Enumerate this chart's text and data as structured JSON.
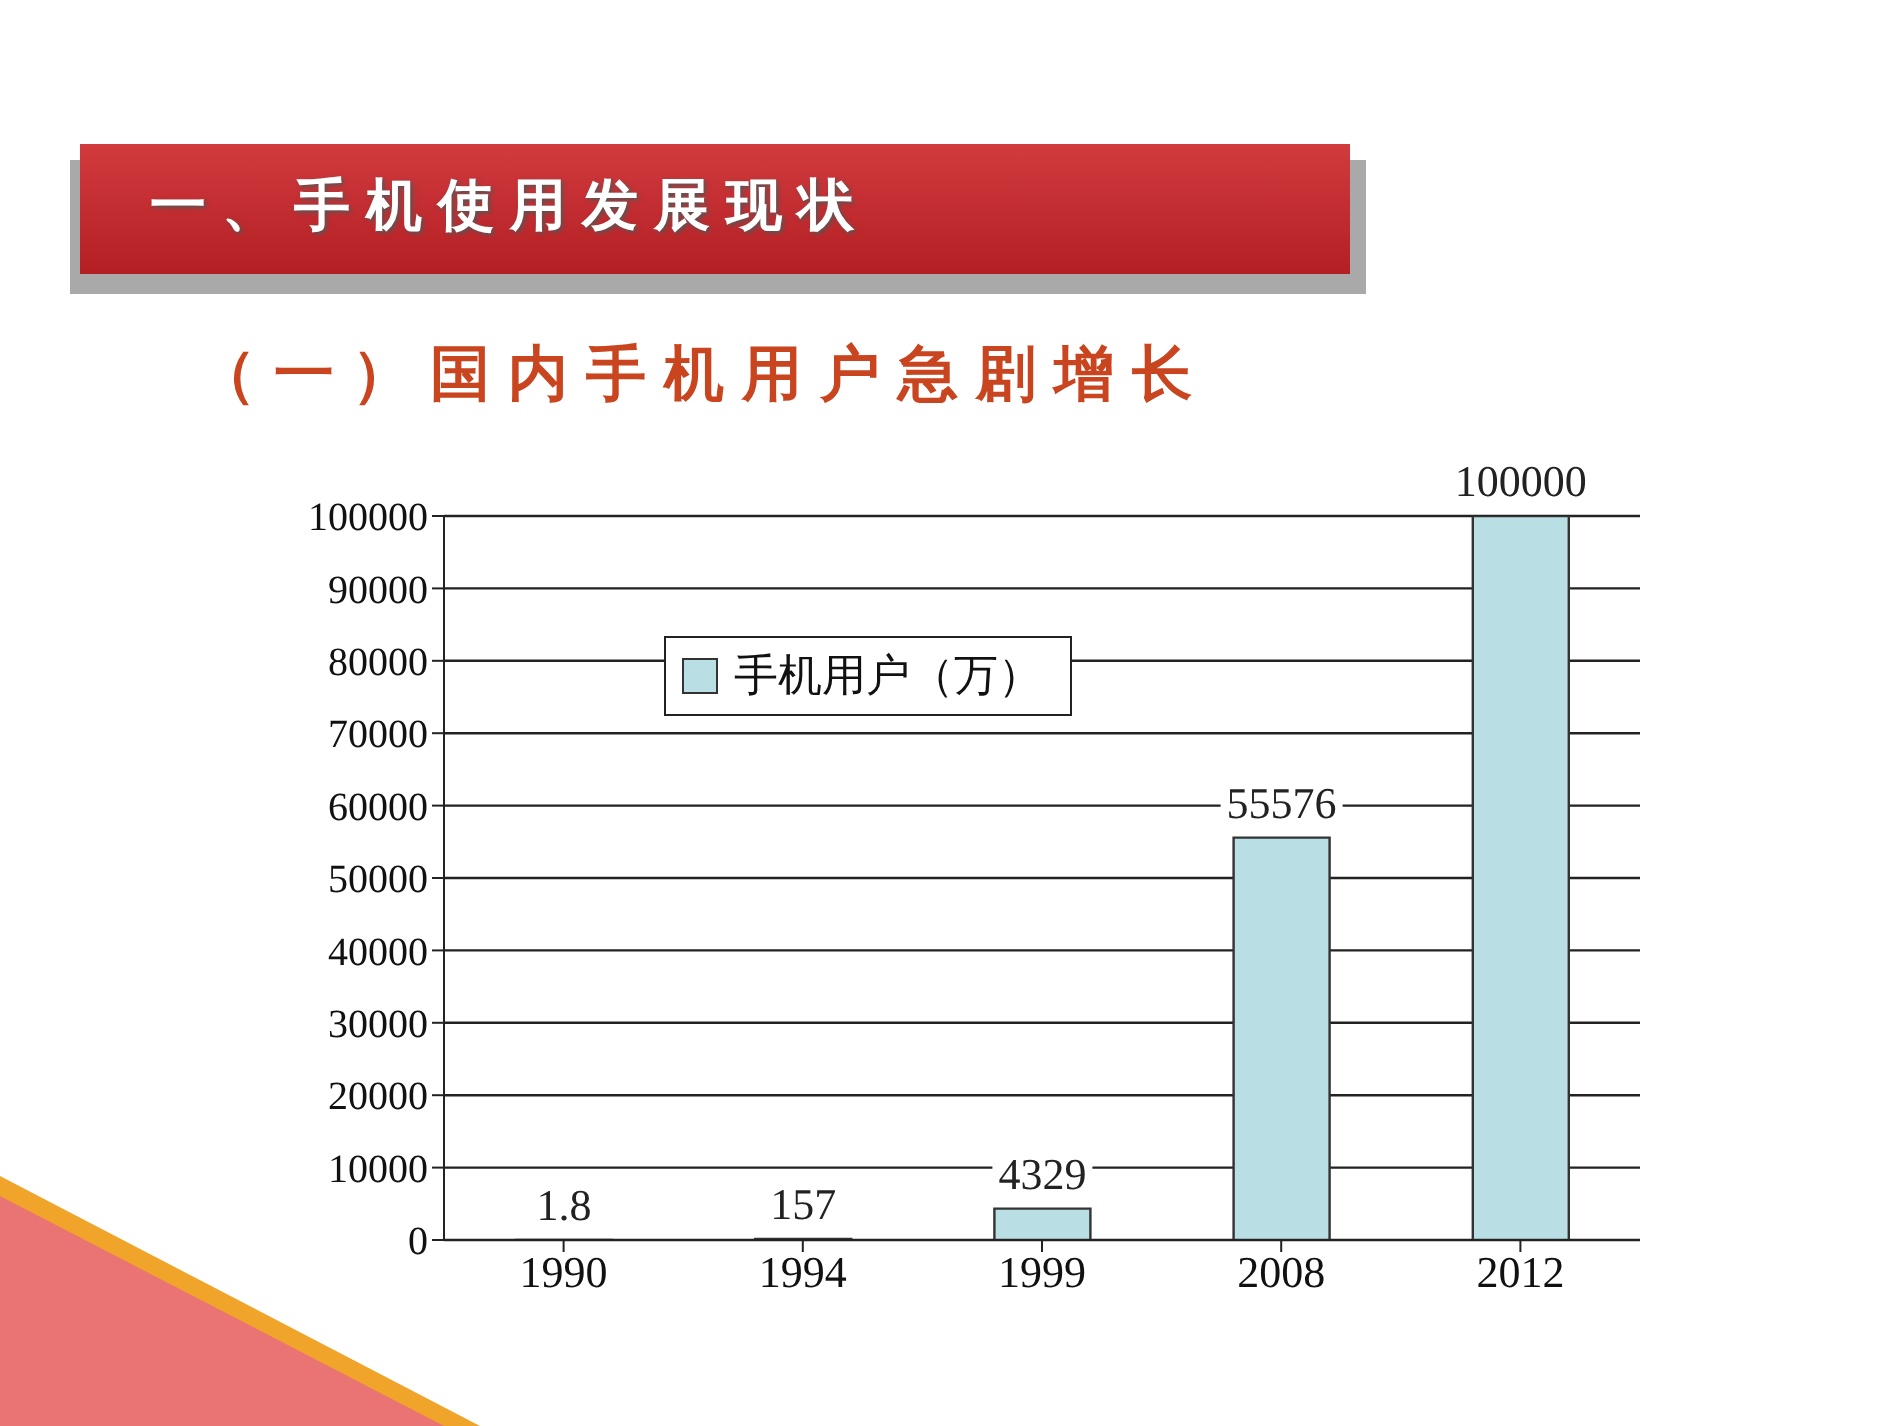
{
  "chart_data": {
    "type": "bar",
    "title": "一、手机使用发展现状",
    "subtitle": "（一）国内手机用户急剧增长",
    "categories": [
      "1990",
      "1994",
      "1999",
      "2008",
      "2012"
    ],
    "series": [
      {
        "name": "手机用户（万）",
        "color": "#b9dfe4",
        "values": [
          1.8,
          157,
          4329,
          55576,
          100000
        ]
      }
    ],
    "ylim": [
      0,
      100000
    ],
    "yticks": [
      0,
      10000,
      20000,
      30000,
      40000,
      50000,
      60000,
      70000,
      80000,
      90000,
      100000
    ],
    "grid": "y",
    "legend": "top left",
    "data_labels": true
  }
}
